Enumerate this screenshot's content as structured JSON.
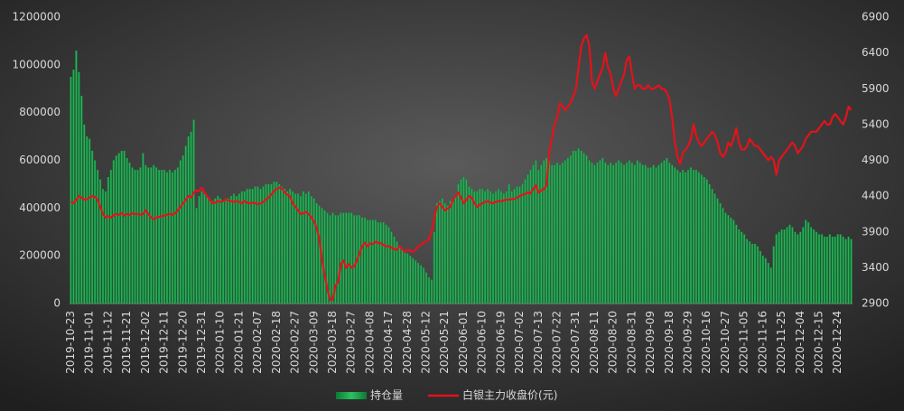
{
  "chart_data": {
    "type": "combo",
    "categories": [
      "2019-10-23",
      null,
      null,
      null,
      null,
      null,
      null,
      "2019-11-01",
      null,
      null,
      null,
      null,
      null,
      null,
      "2019-11-12",
      null,
      null,
      null,
      null,
      null,
      null,
      "2019-11-21",
      null,
      null,
      null,
      null,
      null,
      null,
      "2019-12-02",
      null,
      null,
      null,
      null,
      null,
      null,
      "2019-12-11",
      null,
      null,
      null,
      null,
      null,
      null,
      "2019-12-20",
      null,
      null,
      null,
      null,
      null,
      null,
      "2019-12-31",
      null,
      null,
      null,
      null,
      null,
      null,
      "2020-01-10",
      null,
      null,
      null,
      null,
      null,
      null,
      "2020-01-21",
      null,
      null,
      null,
      null,
      null,
      null,
      "2020-02-07",
      null,
      null,
      null,
      null,
      null,
      null,
      "2020-02-18",
      null,
      null,
      null,
      null,
      null,
      null,
      "2020-02-27",
      null,
      null,
      null,
      null,
      null,
      null,
      "2020-03-09",
      null,
      null,
      null,
      null,
      null,
      null,
      "2020-03-18",
      null,
      null,
      null,
      null,
      null,
      null,
      "2020-03-27",
      null,
      null,
      null,
      null,
      null,
      null,
      "2020-04-08",
      null,
      null,
      null,
      null,
      null,
      null,
      "2020-04-17",
      null,
      null,
      null,
      null,
      null,
      null,
      "2020-04-28",
      null,
      null,
      null,
      null,
      null,
      null,
      "2020-05-12",
      null,
      null,
      null,
      null,
      null,
      null,
      "2020-05-21",
      null,
      null,
      null,
      null,
      null,
      null,
      "2020-06-01",
      null,
      null,
      null,
      null,
      null,
      null,
      "2020-06-10",
      null,
      null,
      null,
      null,
      null,
      null,
      "2020-06-19",
      null,
      null,
      null,
      null,
      null,
      null,
      "2020-07-02",
      null,
      null,
      null,
      null,
      null,
      null,
      "2020-07-13",
      null,
      null,
      null,
      null,
      null,
      null,
      "2020-07-22",
      null,
      null,
      null,
      null,
      null,
      null,
      "2020-07-31",
      null,
      null,
      null,
      null,
      null,
      null,
      "2020-08-11",
      null,
      null,
      null,
      null,
      null,
      null,
      "2020-08-20",
      null,
      null,
      null,
      null,
      null,
      null,
      "2020-08-31",
      null,
      null,
      null,
      null,
      null,
      null,
      "2020-09-09",
      null,
      null,
      null,
      null,
      null,
      null,
      "2020-09-18",
      null,
      null,
      null,
      null,
      null,
      null,
      "2020-09-29",
      null,
      null,
      null,
      null,
      null,
      null,
      "2020-10-16",
      null,
      null,
      null,
      null,
      null,
      null,
      "2020-10-27",
      null,
      null,
      null,
      null,
      null,
      null,
      "2020-11-05",
      null,
      null,
      null,
      null,
      null,
      null,
      "2020-11-16",
      null,
      null,
      null,
      null,
      null,
      null,
      "2020-11-25",
      null,
      null,
      null,
      null,
      null,
      null,
      "2020-12-04",
      null,
      null,
      null,
      null,
      null,
      null,
      "2020-12-15",
      null,
      null,
      null,
      null,
      null,
      null,
      "2020-12-24",
      null,
      null,
      null,
      null,
      null
    ],
    "series": [
      {
        "name": "持仓量",
        "type": "bar",
        "color": "#18a74b",
        "values": [
          950000,
          980000,
          1060000,
          970000,
          870000,
          750000,
          700000,
          690000,
          640000,
          600000,
          560000,
          520000,
          480000,
          470000,
          530000,
          560000,
          600000,
          620000,
          630000,
          640000,
          640000,
          610000,
          590000,
          570000,
          560000,
          560000,
          570000,
          630000,
          580000,
          570000,
          570000,
          580000,
          570000,
          560000,
          560000,
          560000,
          550000,
          560000,
          550000,
          560000,
          570000,
          600000,
          620000,
          660000,
          700000,
          720000,
          770000,
          400000,
          450000,
          470000,
          460000,
          450000,
          440000,
          430000,
          440000,
          450000,
          440000,
          430000,
          440000,
          440000,
          450000,
          460000,
          450000,
          460000,
          470000,
          470000,
          480000,
          480000,
          480000,
          490000,
          490000,
          480000,
          490000,
          500000,
          500000,
          500000,
          510000,
          510000,
          500000,
          490000,
          480000,
          470000,
          480000,
          470000,
          460000,
          460000,
          450000,
          470000,
          460000,
          470000,
          450000,
          440000,
          420000,
          410000,
          400000,
          390000,
          380000,
          370000,
          380000,
          370000,
          370000,
          380000,
          380000,
          380000,
          380000,
          380000,
          370000,
          370000,
          370000,
          360000,
          360000,
          350000,
          350000,
          350000,
          350000,
          340000,
          340000,
          340000,
          330000,
          320000,
          300000,
          280000,
          260000,
          240000,
          230000,
          220000,
          210000,
          200000,
          190000,
          180000,
          170000,
          160000,
          150000,
          130000,
          110000,
          100000,
          300000,
          420000,
          430000,
          440000,
          420000,
          410000,
          430000,
          440000,
          450000,
          500000,
          520000,
          530000,
          520000,
          490000,
          480000,
          470000,
          470000,
          480000,
          480000,
          470000,
          480000,
          470000,
          460000,
          470000,
          480000,
          470000,
          460000,
          470000,
          500000,
          470000,
          480000,
          490000,
          490000,
          500000,
          520000,
          540000,
          560000,
          580000,
          600000,
          560000,
          580000,
          600000,
          610000,
          600000,
          580000,
          580000,
          590000,
          580000,
          590000,
          600000,
          610000,
          620000,
          640000,
          640000,
          650000,
          640000,
          630000,
          620000,
          600000,
          590000,
          580000,
          590000,
          600000,
          610000,
          590000,
          580000,
          590000,
          580000,
          590000,
          600000,
          590000,
          580000,
          590000,
          600000,
          590000,
          580000,
          600000,
          590000,
          580000,
          580000,
          570000,
          570000,
          580000,
          570000,
          580000,
          590000,
          600000,
          610000,
          590000,
          580000,
          570000,
          560000,
          550000,
          560000,
          550000,
          560000,
          570000,
          560000,
          560000,
          550000,
          540000,
          530000,
          520000,
          500000,
          480000,
          460000,
          440000,
          420000,
          400000,
          380000,
          370000,
          360000,
          350000,
          330000,
          310000,
          300000,
          290000,
          270000,
          260000,
          250000,
          250000,
          240000,
          220000,
          200000,
          190000,
          170000,
          150000,
          240000,
          290000,
          300000,
          310000,
          310000,
          320000,
          330000,
          320000,
          300000,
          290000,
          300000,
          320000,
          350000,
          340000,
          320000,
          310000,
          300000,
          290000,
          290000,
          280000,
          280000,
          290000,
          280000,
          280000,
          290000,
          290000,
          280000,
          270000,
          280000,
          270000
        ]
      },
      {
        "name": "白银主力收盘价(元)",
        "type": "line",
        "axis": "y2",
        "color": "#e3131b",
        "values": [
          4320,
          4300,
          4350,
          4400,
          4380,
          4350,
          4360,
          4380,
          4400,
          4390,
          4350,
          4250,
          4150,
          4100,
          4120,
          4100,
          4130,
          4150,
          4140,
          4160,
          4130,
          4150,
          4140,
          4160,
          4150,
          4150,
          4140,
          4150,
          4200,
          4150,
          4100,
          4080,
          4100,
          4110,
          4120,
          4130,
          4140,
          4150,
          4140,
          4160,
          4200,
          4250,
          4300,
          4350,
          4400,
          4380,
          4450,
          4480,
          4470,
          4520,
          4450,
          4400,
          4350,
          4300,
          4310,
          4330,
          4320,
          4330,
          4350,
          4340,
          4330,
          4320,
          4330,
          4320,
          4300,
          4330,
          4310,
          4300,
          4310,
          4300,
          4290,
          4300,
          4320,
          4350,
          4380,
          4420,
          4470,
          4500,
          4520,
          4510,
          4450,
          4420,
          4400,
          4300,
          4250,
          4200,
          4150,
          4160,
          4180,
          4150,
          4100,
          4050,
          3950,
          3800,
          3500,
          3300,
          3100,
          2950,
          2950,
          3150,
          3200,
          3450,
          3500,
          3400,
          3450,
          3400,
          3420,
          3500,
          3600,
          3700,
          3750,
          3700,
          3740,
          3730,
          3760,
          3750,
          3740,
          3720,
          3700,
          3700,
          3680,
          3660,
          3650,
          3700,
          3660,
          3620,
          3650,
          3640,
          3620,
          3650,
          3700,
          3720,
          3750,
          3770,
          3800,
          3900,
          4100,
          4250,
          4300,
          4250,
          4200,
          4230,
          4250,
          4350,
          4400,
          4450,
          4380,
          4300,
          4350,
          4400,
          4380,
          4300,
          4250,
          4280,
          4300,
          4320,
          4330,
          4310,
          4300,
          4320,
          4330,
          4330,
          4340,
          4350,
          4350,
          4360,
          4360,
          4380,
          4400,
          4420,
          4430,
          4450,
          4440,
          4500,
          4550,
          4450,
          4480,
          4500,
          4550,
          5000,
          5200,
          5400,
          5500,
          5700,
          5650,
          5600,
          5650,
          5700,
          5800,
          5900,
          6200,
          6500,
          6600,
          6650,
          6500,
          6000,
          5900,
          6000,
          6100,
          6200,
          6400,
          6200,
          6100,
          5900,
          5800,
          5900,
          6000,
          6100,
          6300,
          6350,
          6100,
          5900,
          5950,
          5950,
          5900,
          5900,
          5950,
          5900,
          5900,
          5920,
          5950,
          5900,
          5900,
          5850,
          5750,
          5500,
          5150,
          4950,
          4850,
          5000,
          5050,
          5100,
          5200,
          5400,
          5250,
          5150,
          5100,
          5150,
          5200,
          5250,
          5300,
          5250,
          5150,
          5000,
          4950,
          5000,
          5150,
          5100,
          5200,
          5350,
          5150,
          5050,
          5050,
          5100,
          5200,
          5150,
          5100,
          5100,
          5050,
          5000,
          4950,
          4900,
          4950,
          4900,
          4700,
          4900,
          4950,
          5000,
          5050,
          5100,
          5150,
          5100,
          5000,
          5050,
          5100,
          5200,
          5250,
          5300,
          5300,
          5300,
          5350,
          5400,
          5450,
          5400,
          5400,
          5500,
          5550,
          5500,
          5450,
          5400,
          5500,
          5650,
          5600
        ]
      }
    ],
    "ylim": [
      0,
      1200000
    ],
    "yticks": [
      0,
      200000,
      400000,
      600000,
      800000,
      1000000,
      1200000
    ],
    "y2lim": [
      2900,
      6900
    ],
    "y2ticks": [
      2900,
      3400,
      3900,
      4400,
      4900,
      5400,
      5900,
      6400,
      6900
    ],
    "legend": "bottom"
  }
}
